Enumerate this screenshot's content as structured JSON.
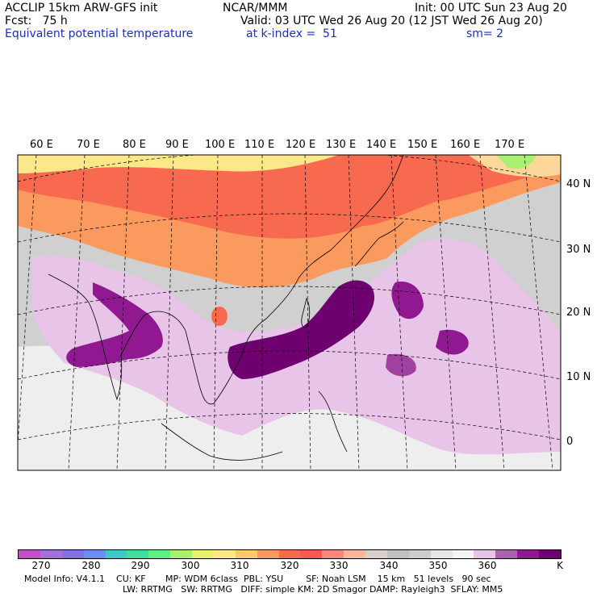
{
  "header": {
    "left_line1": "ACCLIP 15km ARW-GFS init",
    "left_line2": "Fcst:   75 h",
    "field_name": "Equivalent potential temperature",
    "center_line1": "NCAR/MMM",
    "init": "Init: 00 UTC Sun 23 Aug 20",
    "valid": "Valid: 03 UTC Wed 26 Aug 20 (12 JST Wed 26 Aug 20)",
    "level": "at k-index =  51",
    "smoothing": "sm= 2"
  },
  "map": {
    "lon_labels": [
      "60 E",
      "70 E",
      "80 E",
      "90 E",
      "100 E",
      "110 E",
      "120 E",
      "130 E",
      "140 E",
      "150 E",
      "160 E",
      "170 E"
    ],
    "lat_labels": [
      "40 N",
      "30 N",
      "20 N",
      "10 N",
      "0"
    ]
  },
  "colorbar": {
    "units": "K",
    "tick_labels": [
      "270",
      "280",
      "290",
      "300",
      "310",
      "320",
      "330",
      "340",
      "350",
      "360"
    ],
    "colors": [
      "#c24fc8",
      "#a46fd6",
      "#8073e0",
      "#6a8ff0",
      "#3ec8c8",
      "#3ee0a0",
      "#60f080",
      "#a8f070",
      "#e8f070",
      "#fce888",
      "#fdc870",
      "#fb9a5e",
      "#f86a50",
      "#fa5a4e",
      "#f88a78",
      "#f8b898",
      "#d8d0cc",
      "#c0c0c0",
      "#cccccc",
      "#e6e6e6",
      "#f4f4f4",
      "#e8c4e8",
      "#b060b0",
      "#901890",
      "#6e0070"
    ]
  },
  "footer": {
    "line1": "Model Info: V4.1.1    CU: KF       MP: WDM 6class  PBL: YSU        SF: Noah LSM    15 km   51 levels   90 sec",
    "line2": "LW: RRTMG   SW: RRTMG   DIFF: simple KM: 2D Smagor DAMP: Rayleigh3  SFLAY: MM5"
  }
}
